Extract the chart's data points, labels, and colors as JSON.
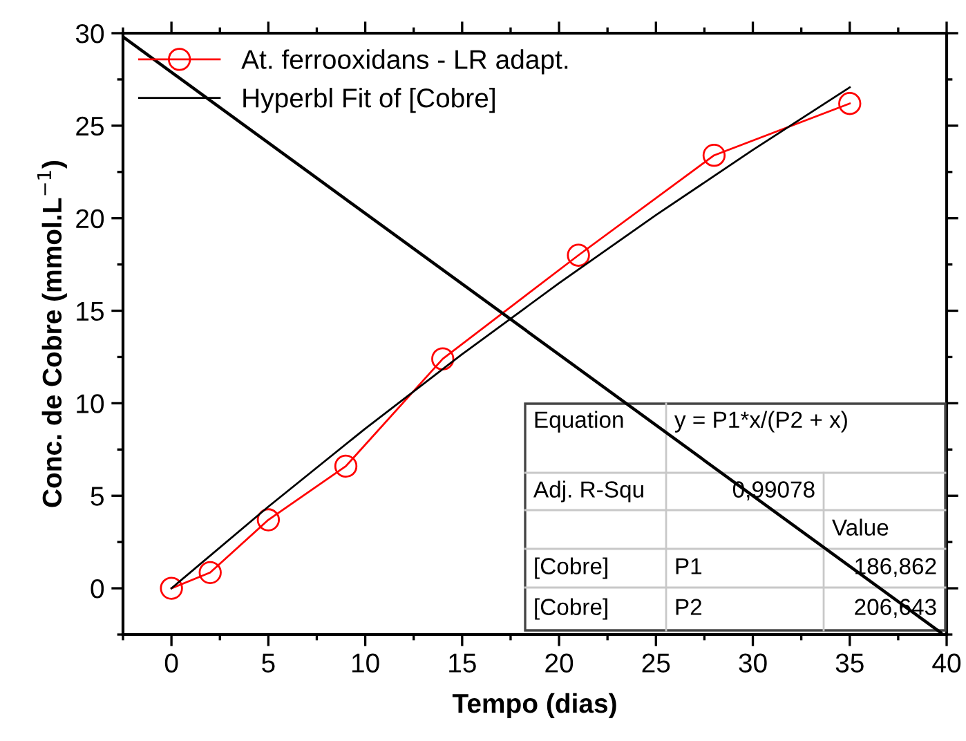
{
  "chart_data": {
    "type": "line",
    "xlabel": "Tempo (dias)",
    "ylabel": "Conc. de Cobre (mmol.L$^{−1}$)",
    "xlim": [
      -2.5,
      40
    ],
    "ylim": [
      -2.5,
      30
    ],
    "xticks": [
      0,
      5,
      10,
      15,
      20,
      25,
      30,
      35,
      40
    ],
    "yticks": [
      0,
      5,
      10,
      15,
      20,
      25,
      30
    ],
    "legend": "top left",
    "grid": false,
    "series": [
      {
        "name": "At. ferrooxidans - LR adapt.",
        "color": "#ff0000",
        "marker": "circle",
        "x": [
          0,
          2,
          5,
          9,
          14,
          21,
          28,
          35
        ],
        "values": [
          0,
          0.85,
          3.7,
          6.6,
          12.4,
          18.0,
          23.4,
          26.2
        ]
      },
      {
        "name": "Hyperbl Fit of [Cobre]",
        "color": "#000000",
        "marker": "none",
        "x": [
          0,
          5,
          10,
          15,
          20,
          25,
          30,
          35
        ],
        "values": [
          0,
          4.41,
          8.63,
          12.65,
          16.49,
          20.17,
          23.69,
          27.07
        ]
      },
      {
        "color": "#000000",
        "marker": "none",
        "x": [
          -2.5,
          39.7
        ],
        "values": [
          29.8,
          -2.4
        ]
      }
    ],
    "annotations": [
      "Equation",
      "y = P1*x/(P2 + x)",
      "Adj. R-Squ",
      "0,99078",
      "Value",
      "[Cobre]",
      "P1",
      "186,862",
      "[Cobre]",
      "P2",
      "206,643"
    ]
  }
}
